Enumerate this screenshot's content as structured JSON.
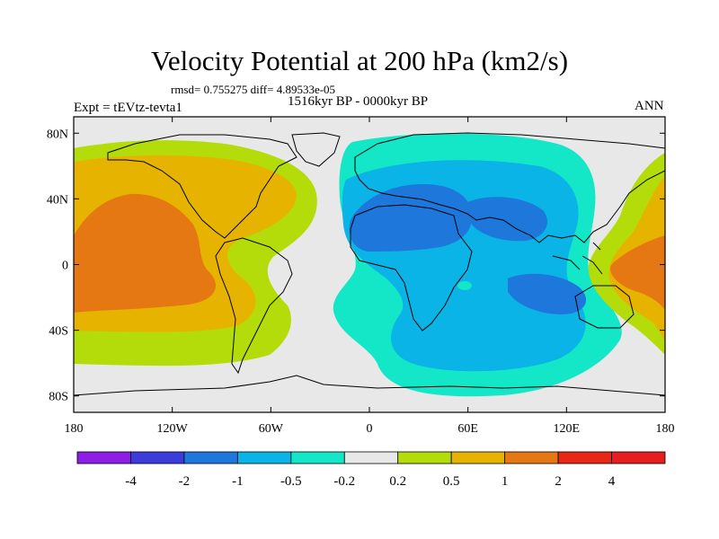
{
  "title": "Velocity Potential at 200 hPa (km2/s)",
  "stats": "rmsd= 0.755275 diff= 4.89533e-05",
  "period": "1516kyr BP - 0000kyr BP",
  "expt": "Expt = tEVtz-tevta1",
  "season": "ANN",
  "x_ticks": [
    {
      "lon": -180,
      "label": "180"
    },
    {
      "lon": -120,
      "label": "120W"
    },
    {
      "lon": -60,
      "label": "60W"
    },
    {
      "lon": 0,
      "label": "0"
    },
    {
      "lon": 60,
      "label": "60E"
    },
    {
      "lon": 120,
      "label": "120E"
    },
    {
      "lon": 180,
      "label": "180"
    }
  ],
  "y_ticks": [
    {
      "lat": 80,
      "label": "80N"
    },
    {
      "lat": 40,
      "label": "40N"
    },
    {
      "lat": 0,
      "label": "0"
    },
    {
      "lat": -40,
      "label": "40S"
    },
    {
      "lat": -80,
      "label": "80S"
    }
  ],
  "colorbar": {
    "levels": [
      "-4",
      "-2",
      "-1",
      "-0.5",
      "-0.2",
      "0.2",
      "0.5",
      "1",
      "2",
      "4"
    ],
    "colors": [
      "#8c1ee6",
      "#3c3cdc",
      "#1e78dc",
      "#0ab4e6",
      "#14e6c8",
      "#e8e8e8",
      "#b4dc0a",
      "#e6b400",
      "#e67814",
      "#e62814",
      "#e61e1e"
    ]
  },
  "region_colors": {
    "neutral": "#e8e8e8",
    "pos_light": "#b4dc0a",
    "pos_mid": "#e6b400",
    "pos_strong": "#e67814",
    "neg_light": "#14e6c8",
    "neg_mid": "#0ab4e6",
    "neg_strong": "#1e78dc"
  }
}
